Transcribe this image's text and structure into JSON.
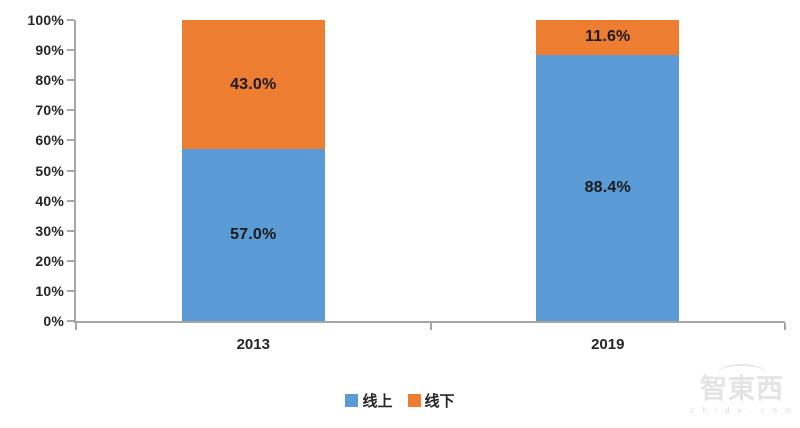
{
  "chart_data": {
    "type": "bar",
    "subtype": "stacked-percent",
    "title": "",
    "categories": [
      "2013",
      "2019"
    ],
    "series": [
      {
        "name": "线上",
        "color": "#5B9BD5",
        "values": [
          57.0,
          88.4
        ]
      },
      {
        "name": "线下",
        "color": "#ED7D31",
        "values": [
          43.0,
          11.6
        ]
      }
    ],
    "data_labels": [
      [
        "57.0%",
        "43.0%"
      ],
      [
        "88.4%",
        "11.6%"
      ]
    ],
    "y_ticks": [
      "0%",
      "10%",
      "20%",
      "30%",
      "40%",
      "50%",
      "60%",
      "70%",
      "80%",
      "90%",
      "100%"
    ],
    "ylim": [
      0,
      100
    ],
    "grid": false,
    "legend_position": "bottom",
    "legend": [
      "线上",
      "线下"
    ]
  },
  "colors": {
    "axis": "#A6A6A6",
    "tick_label": "#262626",
    "data_label": "#1a1a1a",
    "online_blue": "#5B9BD5",
    "offline_orange": "#ED7D31",
    "watermark": "#e4e4e4"
  },
  "watermark": {
    "logo_text": "智東西",
    "url_text": "z h i d x . c o m"
  }
}
